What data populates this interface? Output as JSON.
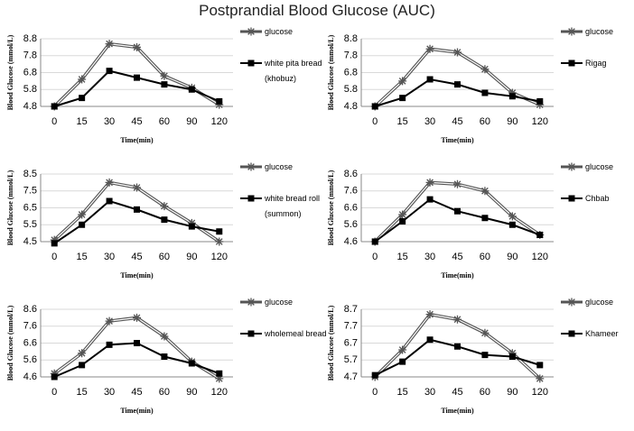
{
  "title": "Postprandial Blood Glucose (AUC)",
  "chart_data": [
    {
      "type": "line",
      "y_label": "Blood Glucose (mmol/L)",
      "x_label": "Time(min)",
      "categories": [
        "0",
        "15",
        "30",
        "45",
        "60",
        "90",
        "120"
      ],
      "ylim": [
        4.8,
        8.8
      ],
      "yticks": [
        4.8,
        5.8,
        6.8,
        7.8,
        8.8
      ],
      "grid": true,
      "series": [
        {
          "name": "glucose",
          "color": "#555555",
          "marker": "star",
          "values": [
            4.8,
            6.4,
            8.5,
            8.3,
            6.6,
            5.9,
            4.9
          ]
        },
        {
          "name": "white pita bread (khobuz)",
          "color": "#000000",
          "marker": "square",
          "values": [
            4.8,
            5.3,
            6.9,
            6.5,
            6.1,
            5.8,
            5.1
          ]
        }
      ]
    },
    {
      "type": "line",
      "y_label": "Blood Glucose (mmol/L)",
      "x_label": "Time(min)",
      "categories": [
        "0",
        "15",
        "30",
        "45",
        "60",
        "90",
        "120"
      ],
      "ylim": [
        4.8,
        8.8
      ],
      "yticks": [
        4.8,
        5.8,
        6.8,
        7.8,
        8.8
      ],
      "grid": true,
      "series": [
        {
          "name": "glucose",
          "color": "#555555",
          "marker": "star",
          "values": [
            4.8,
            6.3,
            8.2,
            8.0,
            7.0,
            5.6,
            4.9
          ]
        },
        {
          "name": "Rigag",
          "color": "#000000",
          "marker": "square",
          "values": [
            4.8,
            5.3,
            6.4,
            6.1,
            5.6,
            5.4,
            5.1
          ]
        }
      ]
    },
    {
      "type": "line",
      "y_label": "Blood Glucose (mmol/L)",
      "x_label": "Time(min)",
      "categories": [
        "0",
        "15",
        "30",
        "45",
        "60",
        "90",
        "120"
      ],
      "ylim": [
        4.5,
        8.5
      ],
      "yticks": [
        4.5,
        5.5,
        6.5,
        7.5,
        8.5
      ],
      "grid": true,
      "series": [
        {
          "name": "glucose",
          "color": "#555555",
          "marker": "star",
          "values": [
            4.6,
            6.1,
            8.0,
            7.7,
            6.6,
            5.6,
            4.5
          ]
        },
        {
          "name": "white bread roll (summon)",
          "color": "#000000",
          "marker": "square",
          "values": [
            4.4,
            5.5,
            6.9,
            6.4,
            5.8,
            5.4,
            5.1
          ]
        }
      ]
    },
    {
      "type": "line",
      "y_label": "Blood Glucose (mmol/L)",
      "x_label": "Time(min)",
      "categories": [
        "0",
        "15",
        "30",
        "45",
        "60",
        "90",
        "120"
      ],
      "ylim": [
        4.6,
        8.6
      ],
      "yticks": [
        4.6,
        5.6,
        6.6,
        7.6,
        8.6
      ],
      "grid": true,
      "series": [
        {
          "name": "glucose",
          "color": "#555555",
          "marker": "star",
          "values": [
            4.6,
            6.2,
            8.1,
            8.0,
            7.6,
            6.1,
            5.0
          ]
        },
        {
          "name": "Chbab",
          "color": "#000000",
          "marker": "square",
          "values": [
            4.6,
            5.8,
            7.1,
            6.4,
            6.0,
            5.6,
            5.0
          ]
        }
      ]
    },
    {
      "type": "line",
      "y_label": "Blood Glucose (mmol/L)",
      "x_label": "Time(min)",
      "categories": [
        "0",
        "15",
        "30",
        "45",
        "60",
        "90",
        "120"
      ],
      "ylim": [
        4.6,
        8.6
      ],
      "yticks": [
        4.6,
        5.6,
        6.6,
        7.6,
        8.6
      ],
      "grid": true,
      "series": [
        {
          "name": "glucose",
          "color": "#555555",
          "marker": "star",
          "values": [
            4.8,
            6.0,
            7.9,
            8.1,
            7.0,
            5.5,
            4.5
          ]
        },
        {
          "name": "wholemeal bread",
          "color": "#000000",
          "marker": "square",
          "values": [
            4.6,
            5.3,
            6.5,
            6.6,
            5.8,
            5.4,
            4.8
          ]
        }
      ]
    },
    {
      "type": "line",
      "y_label": "Blood Glucose (mmol/L)",
      "x_label": "Time(min)",
      "categories": [
        "0",
        "15",
        "30",
        "45",
        "60",
        "90",
        "120"
      ],
      "ylim": [
        4.7,
        8.7
      ],
      "yticks": [
        4.7,
        5.7,
        6.7,
        7.7,
        8.7
      ],
      "grid": true,
      "series": [
        {
          "name": "glucose",
          "color": "#555555",
          "marker": "star",
          "values": [
            4.7,
            6.3,
            8.4,
            8.1,
            7.3,
            6.1,
            4.6
          ]
        },
        {
          "name": "Khameer",
          "color": "#000000",
          "marker": "square",
          "values": [
            4.8,
            5.6,
            6.9,
            6.5,
            6.0,
            5.9,
            5.4
          ]
        }
      ]
    }
  ]
}
